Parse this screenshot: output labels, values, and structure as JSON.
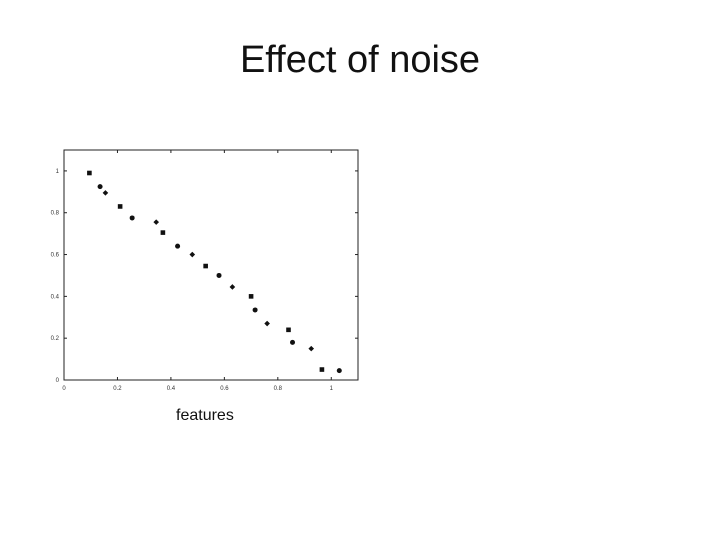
{
  "slide": {
    "title": "Effect of noise",
    "caption": "features"
  },
  "chart_data": {
    "type": "scatter",
    "title": "",
    "xlabel": "",
    "ylabel": "",
    "xlim": [
      0,
      1.1
    ],
    "ylim": [
      0,
      1.1
    ],
    "x_ticks": [
      0,
      0.2,
      0.4,
      0.6,
      0.8,
      1
    ],
    "x_tick_labels": [
      "0",
      "0.2",
      "0.4",
      "0.6",
      "0.8",
      "1"
    ],
    "y_ticks": [
      0,
      0.2,
      0.4,
      0.6,
      0.8,
      1
    ],
    "y_tick_labels": [
      "0",
      "0.2",
      "0.4",
      "0.6",
      "0.8",
      "1"
    ],
    "grid": false,
    "marker_color": "#111111",
    "series": [
      {
        "points": [
          {
            "x": 0.095,
            "y": 0.99
          },
          {
            "x": 0.135,
            "y": 0.925
          },
          {
            "x": 0.155,
            "y": 0.895
          },
          {
            "x": 0.21,
            "y": 0.83
          },
          {
            "x": 0.255,
            "y": 0.775
          },
          {
            "x": 0.345,
            "y": 0.755
          },
          {
            "x": 0.37,
            "y": 0.705
          },
          {
            "x": 0.425,
            "y": 0.64
          },
          {
            "x": 0.48,
            "y": 0.6
          },
          {
            "x": 0.53,
            "y": 0.545
          },
          {
            "x": 0.58,
            "y": 0.5
          },
          {
            "x": 0.63,
            "y": 0.445
          },
          {
            "x": 0.7,
            "y": 0.4
          },
          {
            "x": 0.715,
            "y": 0.335
          },
          {
            "x": 0.76,
            "y": 0.27
          },
          {
            "x": 0.84,
            "y": 0.24
          },
          {
            "x": 0.855,
            "y": 0.18
          },
          {
            "x": 0.925,
            "y": 0.15
          },
          {
            "x": 0.965,
            "y": 0.05
          },
          {
            "x": 1.03,
            "y": 0.045
          }
        ]
      }
    ]
  }
}
